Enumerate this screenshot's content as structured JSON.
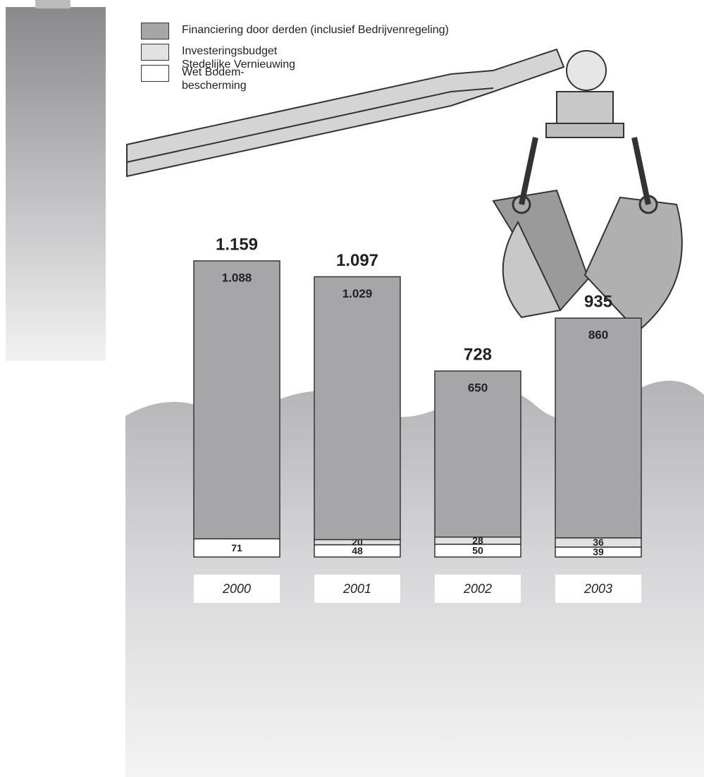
{
  "chart_data": {
    "type": "stacked-bar",
    "categories": [
      "2000",
      "2001",
      "2002",
      "2003"
    ],
    "series": [
      {
        "name": "Wet Bodem-\nbescherming",
        "color": "#ffffff",
        "values": [
          71,
          48,
          50,
          39
        ]
      },
      {
        "name": "Investeringsbudget\nStedelijke Vernieuwing",
        "color": "#e2e2e2",
        "values": [
          null,
          20,
          28,
          36
        ]
      },
      {
        "name": "Financiering door derden (inclusief Bedrijvenregeling)",
        "color": "#a6a6a8",
        "values": [
          1088,
          1029,
          650,
          860
        ],
        "value_labels": [
          "1.088",
          "1.029",
          "650",
          "860"
        ]
      }
    ],
    "totals": {
      "values": [
        1159,
        1097,
        728,
        935
      ],
      "value_labels": [
        "1.159",
        "1.097",
        "728",
        "935"
      ]
    }
  }
}
